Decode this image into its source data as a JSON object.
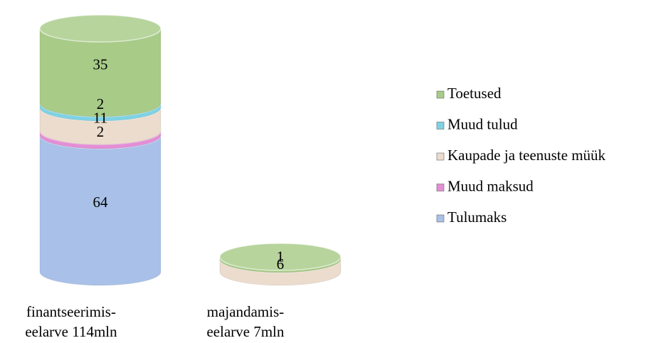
{
  "chart_data": {
    "type": "bar",
    "stacked": true,
    "categories": [
      "finantseerimis-\neelarve 114mln",
      "majandamis-\neelarve 7mln"
    ],
    "series": [
      {
        "name": "Tulumaks",
        "color": "#a9c1e8",
        "values": [
          64,
          null
        ]
      },
      {
        "name": "Muud maksud",
        "color": "#e48ed6",
        "values": [
          2,
          null
        ]
      },
      {
        "name": "Kaupade ja teenuste müük",
        "color": "#ecdccd",
        "values": [
          11,
          6
        ]
      },
      {
        "name": "Muud tulud",
        "color": "#7fd2e4",
        "values": [
          2,
          null
        ]
      },
      {
        "name": "Toetused",
        "color": "#a8cb88",
        "values": [
          35,
          1
        ]
      }
    ],
    "legend": "right"
  }
}
